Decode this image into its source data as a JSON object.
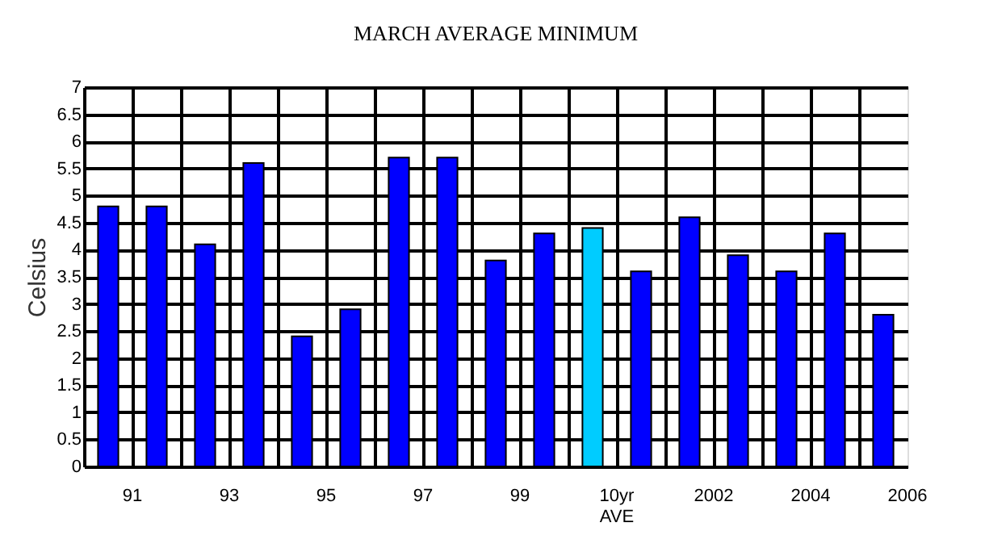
{
  "chart_data": {
    "type": "bar",
    "title": "MARCH AVERAGE MINIMUM",
    "ylabel": "Celsius",
    "categories": [
      "91",
      null,
      "93",
      null,
      "95",
      null,
      "97",
      null,
      "99",
      null,
      "10yr AVE",
      null,
      "2002",
      null,
      "2004",
      null,
      "2006"
    ],
    "values": [
      4.8,
      4.8,
      4.1,
      5.6,
      2.4,
      2.9,
      5.7,
      5.7,
      3.8,
      4.3,
      4.4,
      3.6,
      4.6,
      3.9,
      3.6,
      4.3,
      2.8
    ],
    "colors": [
      "#0000ff",
      "#0000ff",
      "#0000ff",
      "#0000ff",
      "#0000ff",
      "#0000ff",
      "#0000ff",
      "#0000ff",
      "#0000ff",
      "#0000ff",
      "#00ccff",
      "#0000ff",
      "#0000ff",
      "#0000ff",
      "#0000ff",
      "#0000ff",
      "#0000ff"
    ],
    "ylim": [
      0,
      7
    ],
    "yticks": [
      0,
      0.5,
      1,
      1.5,
      2,
      2.5,
      3,
      3.5,
      4,
      4.5,
      5,
      5.5,
      6,
      6.5,
      7
    ],
    "grid": true
  }
}
